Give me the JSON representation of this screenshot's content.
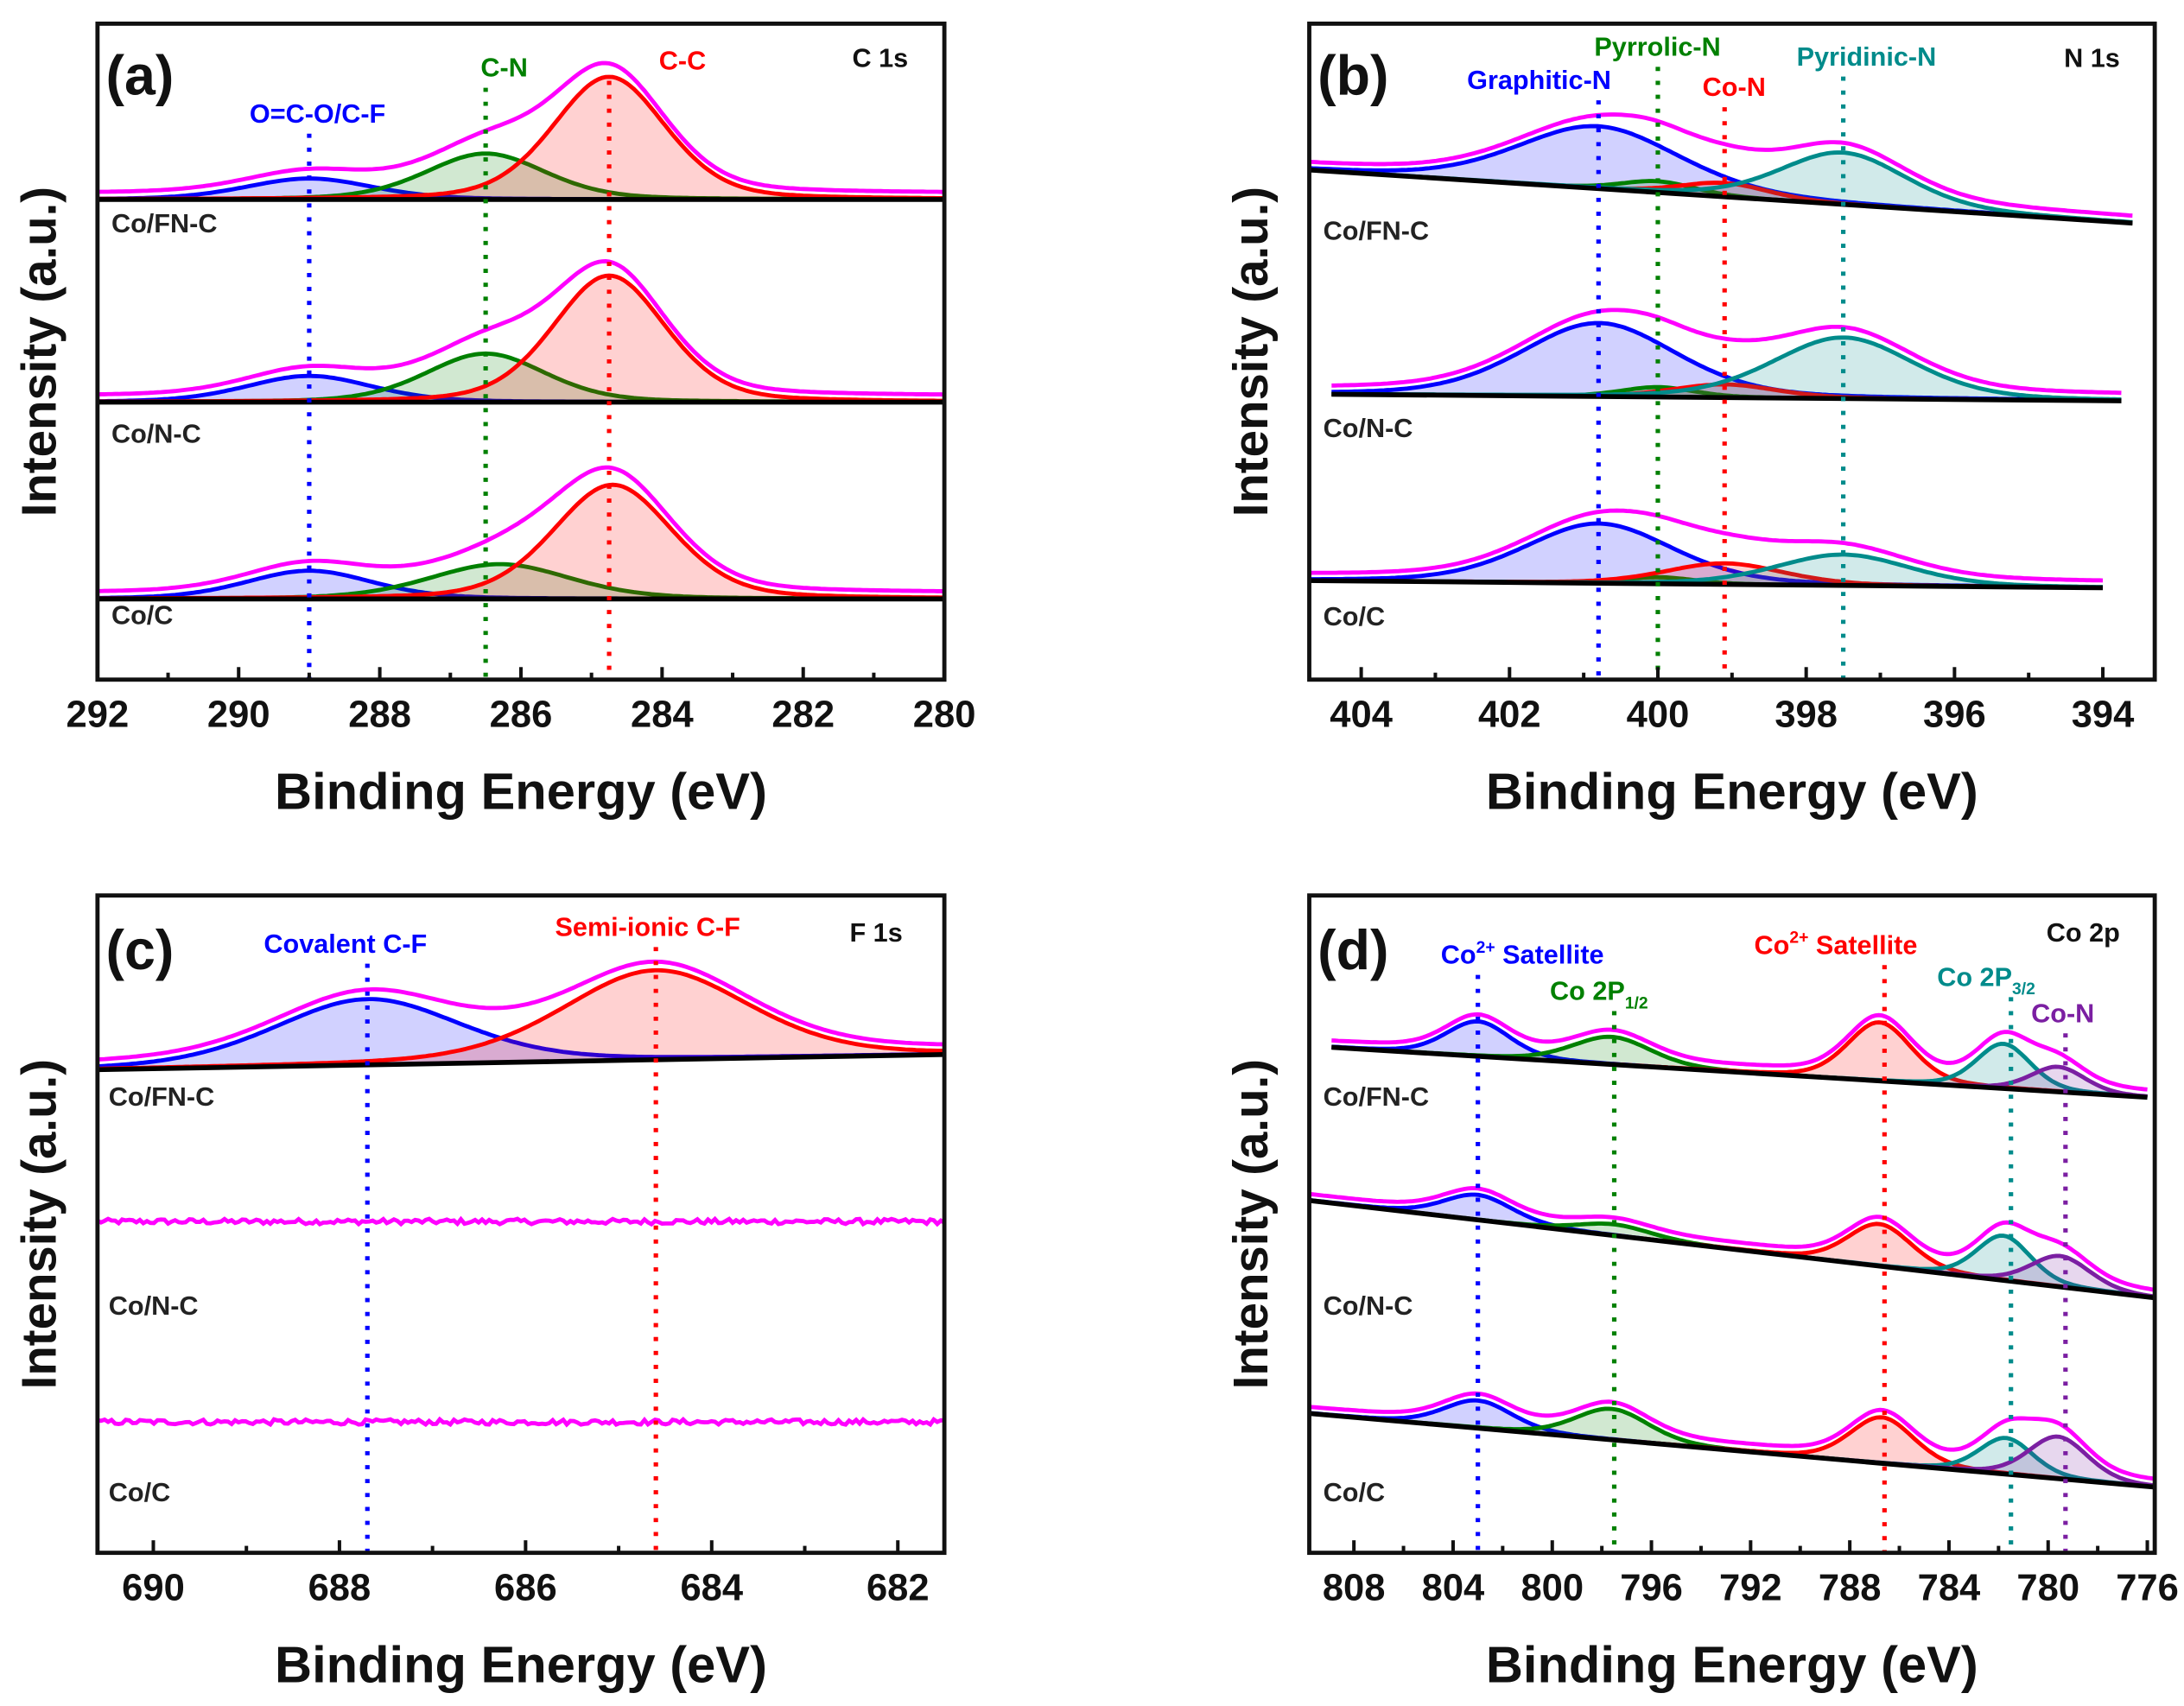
{
  "chart_data": [
    {
      "type": "line",
      "panel": "(a)",
      "region": "C 1s",
      "xlabel": "Binding Energy (eV)",
      "ylabel": "Intensity (a.u.)",
      "xlim": [
        292,
        280
      ],
      "ylim": [
        0,
        100
      ],
      "xticks": [
        292,
        290,
        288,
        286,
        284,
        282,
        280
      ],
      "minor_step": 1,
      "grid": false,
      "markers": [
        {
          "text": "O=C-O/C-F",
          "position": 289.0,
          "color": "#0000ff"
        },
        {
          "text": "C-N",
          "position": 286.5,
          "color": "#008000"
        },
        {
          "text": "C-C",
          "position": 284.75,
          "color": "#ff0000"
        }
      ],
      "spectra": [
        {
          "sample": "Co/FN-C",
          "x_range": [
            292,
            280
          ],
          "background": [
            73.2,
            73.2
          ],
          "components": [
            {
              "peak": 0,
              "center": 289.0,
              "height": 3.2,
              "sigma": 0.9
            },
            {
              "peak": 1,
              "center": 286.5,
              "height": 7.0,
              "sigma": 0.85
            },
            {
              "peak": 2,
              "center": 284.75,
              "height": 18.7,
              "sigma": 0.8
            }
          ]
        },
        {
          "sample": "Co/N-C",
          "x_range": [
            292,
            280
          ],
          "background": [
            42.3,
            42.3
          ],
          "components": [
            {
              "peak": 0,
              "center": 289.0,
              "height": 4.0,
              "sigma": 0.9
            },
            {
              "peak": 1,
              "center": 286.5,
              "height": 7.4,
              "sigma": 0.85
            },
            {
              "peak": 2,
              "center": 284.75,
              "height": 19.3,
              "sigma": 0.8
            }
          ]
        },
        {
          "sample": "Co/C",
          "x_range": [
            292,
            280
          ],
          "background": [
            12.3,
            12.3
          ],
          "components": [
            {
              "peak": 0,
              "center": 289.0,
              "height": 4.3,
              "sigma": 0.9
            },
            {
              "peak": 1,
              "center": 286.3,
              "height": 5.3,
              "sigma": 1.0
            },
            {
              "peak": 2,
              "center": 284.7,
              "height": 17.4,
              "sigma": 0.85
            }
          ]
        }
      ]
    },
    {
      "type": "line",
      "panel": "(b)",
      "region": "N 1s",
      "xlabel": "Binding Energy (eV)",
      "ylabel": "Intensity (a.u.)",
      "xlim": [
        404.7,
        393.3
      ],
      "ylim": [
        0,
        100
      ],
      "xticks": [
        404,
        402,
        400,
        398,
        396,
        394
      ],
      "minor_step": 1,
      "grid": false,
      "markers": [
        {
          "text": "Graphitic-N",
          "position": 400.8,
          "color": "#0000ff"
        },
        {
          "text": "Pyrrolic-N",
          "position": 400.0,
          "color": "#008000"
        },
        {
          "text": "Co-N",
          "position": 399.1,
          "color": "#ff0000"
        },
        {
          "text": "Pyridinic-N",
          "position": 397.5,
          "color": "#008b8b"
        }
      ],
      "spectra": [
        {
          "sample": "Co/FN-C",
          "x_range": [
            404.7,
            393.6
          ],
          "background": [
            77.7,
            69.6
          ],
          "components": [
            {
              "peak": 0,
              "center": 400.8,
              "height": 9.5,
              "sigma": 1.1
            },
            {
              "peak": 1,
              "center": 400.0,
              "height": 1.7,
              "sigma": 0.5
            },
            {
              "peak": 2,
              "center": 399.1,
              "height": 2.1,
              "sigma": 0.6
            },
            {
              "peak": 3,
              "center": 397.5,
              "height": 7.9,
              "sigma": 0.85
            }
          ]
        },
        {
          "sample": "Co/N-C",
          "x_range": [
            404.4,
            393.75
          ],
          "background": [
            43.5,
            42.5
          ],
          "components": [
            {
              "peak": 0,
              "center": 400.8,
              "height": 11.2,
              "sigma": 1.05
            },
            {
              "peak": 1,
              "center": 400.0,
              "height": 1.5,
              "sigma": 0.5
            },
            {
              "peak": 2,
              "center": 399.1,
              "height": 2.0,
              "sigma": 0.7
            },
            {
              "peak": 3,
              "center": 397.5,
              "height": 9.3,
              "sigma": 0.95
            }
          ]
        },
        {
          "sample": "Co/C",
          "x_range": [
            404.7,
            394.0
          ],
          "background": [
            15.1,
            14.0
          ],
          "components": [
            {
              "peak": 0,
              "center": 400.8,
              "height": 9.1,
              "sigma": 1.0
            },
            {
              "peak": 1,
              "center": 400.0,
              "height": 1.0,
              "sigma": 0.5
            },
            {
              "peak": 2,
              "center": 399.1,
              "height": 3.2,
              "sigma": 0.8
            },
            {
              "peak": 3,
              "center": 397.5,
              "height": 4.7,
              "sigma": 0.9
            }
          ]
        }
      ]
    },
    {
      "type": "line",
      "panel": "(c)",
      "region": "F 1s",
      "xlabel": "Binding Energy (eV)",
      "ylabel": "Intensity (a.u.)",
      "xlim": [
        690.6,
        681.5
      ],
      "ylim": [
        0,
        100
      ],
      "xticks": [
        690,
        688,
        686,
        684,
        682
      ],
      "minor_step": 1,
      "grid": false,
      "markers": [
        {
          "text": "Covalent C-F",
          "position": 687.7,
          "color": "#0000ff"
        },
        {
          "text": "Semi-ionic C-F",
          "position": 684.6,
          "color": "#ff0000"
        }
      ],
      "spectra": [
        {
          "sample": "Co/FN-C",
          "x_range": [
            690.6,
            681.5
          ],
          "background": [
            73.5,
            75.8
          ],
          "components": [
            {
              "peak": 0,
              "center": 687.7,
              "height": 10.0,
              "sigma": 1.0
            },
            {
              "peak": 1,
              "center": 684.6,
              "height": 13.6,
              "sigma": 1.0
            }
          ]
        },
        {
          "sample": "Co/N-C",
          "x_range": [
            690.6,
            681.5
          ],
          "background": [
            50.4,
            50.4
          ],
          "components": [],
          "noisy": true
        },
        {
          "sample": "Co/C",
          "x_range": [
            690.6,
            681.5
          ],
          "background": [
            19.9,
            19.9
          ],
          "components": [],
          "noisy": true
        }
      ]
    },
    {
      "type": "line",
      "panel": "(d)",
      "region": "Co 2p",
      "xlabel": "Binding Energy (eV)",
      "ylabel": "Intensity (a.u.)",
      "xlim": [
        809.8,
        775.7
      ],
      "ylim": [
        0,
        100
      ],
      "xticks": [
        808,
        804,
        800,
        796,
        792,
        788,
        784,
        780,
        776
      ],
      "minor_step": 2,
      "grid": false,
      "markers": [
        {
          "text": "Co",
          "sup": "2+",
          "tail": " Satellite",
          "position": 803.0,
          "color": "#0000ff"
        },
        {
          "text": "Co 2P",
          "sub": "1/2",
          "position": 797.5,
          "color": "#008000"
        },
        {
          "text": "Co",
          "sup": "2+",
          "tail": " Satellite",
          "position": 786.6,
          "color": "#ff0000"
        },
        {
          "text": "Co 2P",
          "sub": "3/2",
          "position": 781.5,
          "color": "#008b8b"
        },
        {
          "text": "Co-N",
          "position": 779.3,
          "color": "#7b1fa2"
        }
      ],
      "spectra": [
        {
          "sample": "Co/FN-C",
          "x_range": [
            808.9,
            776.0
          ],
          "background": [
            76.9,
            69.3
          ],
          "components": [
            {
              "peak": 0,
              "center": 803.0,
              "height": 5.3,
              "sigma": 1.3
            },
            {
              "peak": 1,
              "center": 797.6,
              "height": 4.2,
              "sigma": 1.6
            },
            {
              "peak": 2,
              "center": 786.8,
              "height": 8.9,
              "sigma": 1.3
            },
            {
              "peak": 3,
              "center": 781.8,
              "height": 6.8,
              "sigma": 1.1
            },
            {
              "peak": 4,
              "center": 779.6,
              "height": 3.8,
              "sigma": 1.1
            }
          ]
        },
        {
          "sample": "Co/N-C",
          "x_range": [
            809.8,
            775.7
          ],
          "background": [
            53.6,
            38.8
          ],
          "components": [
            {
              "peak": 0,
              "center": 803.0,
              "height": 3.8,
              "sigma": 1.4
            },
            {
              "peak": 1,
              "center": 797.5,
              "height": 1.7,
              "sigma": 1.5
            },
            {
              "peak": 2,
              "center": 786.8,
              "height": 6.4,
              "sigma": 1.3
            },
            {
              "peak": 3,
              "center": 781.8,
              "height": 6.8,
              "sigma": 1.1
            },
            {
              "peak": 4,
              "center": 779.5,
              "height": 4.7,
              "sigma": 1.2
            }
          ]
        },
        {
          "sample": "Co/C",
          "x_range": [
            809.8,
            775.7
          ],
          "background": [
            21.2,
            10.0
          ],
          "components": [
            {
              "peak": 0,
              "center": 803.0,
              "height": 4.2,
              "sigma": 1.4
            },
            {
              "peak": 1,
              "center": 797.6,
              "height": 4.7,
              "sigma": 1.5
            },
            {
              "peak": 2,
              "center": 786.7,
              "height": 7.0,
              "sigma": 1.3
            },
            {
              "peak": 3,
              "center": 781.7,
              "height": 5.5,
              "sigma": 1.1
            },
            {
              "peak": 4,
              "center": 779.6,
              "height": 6.4,
              "sigma": 1.2
            }
          ]
        }
      ]
    }
  ],
  "colors": {
    "envelope": "#ff00ff",
    "background": "#000000"
  }
}
